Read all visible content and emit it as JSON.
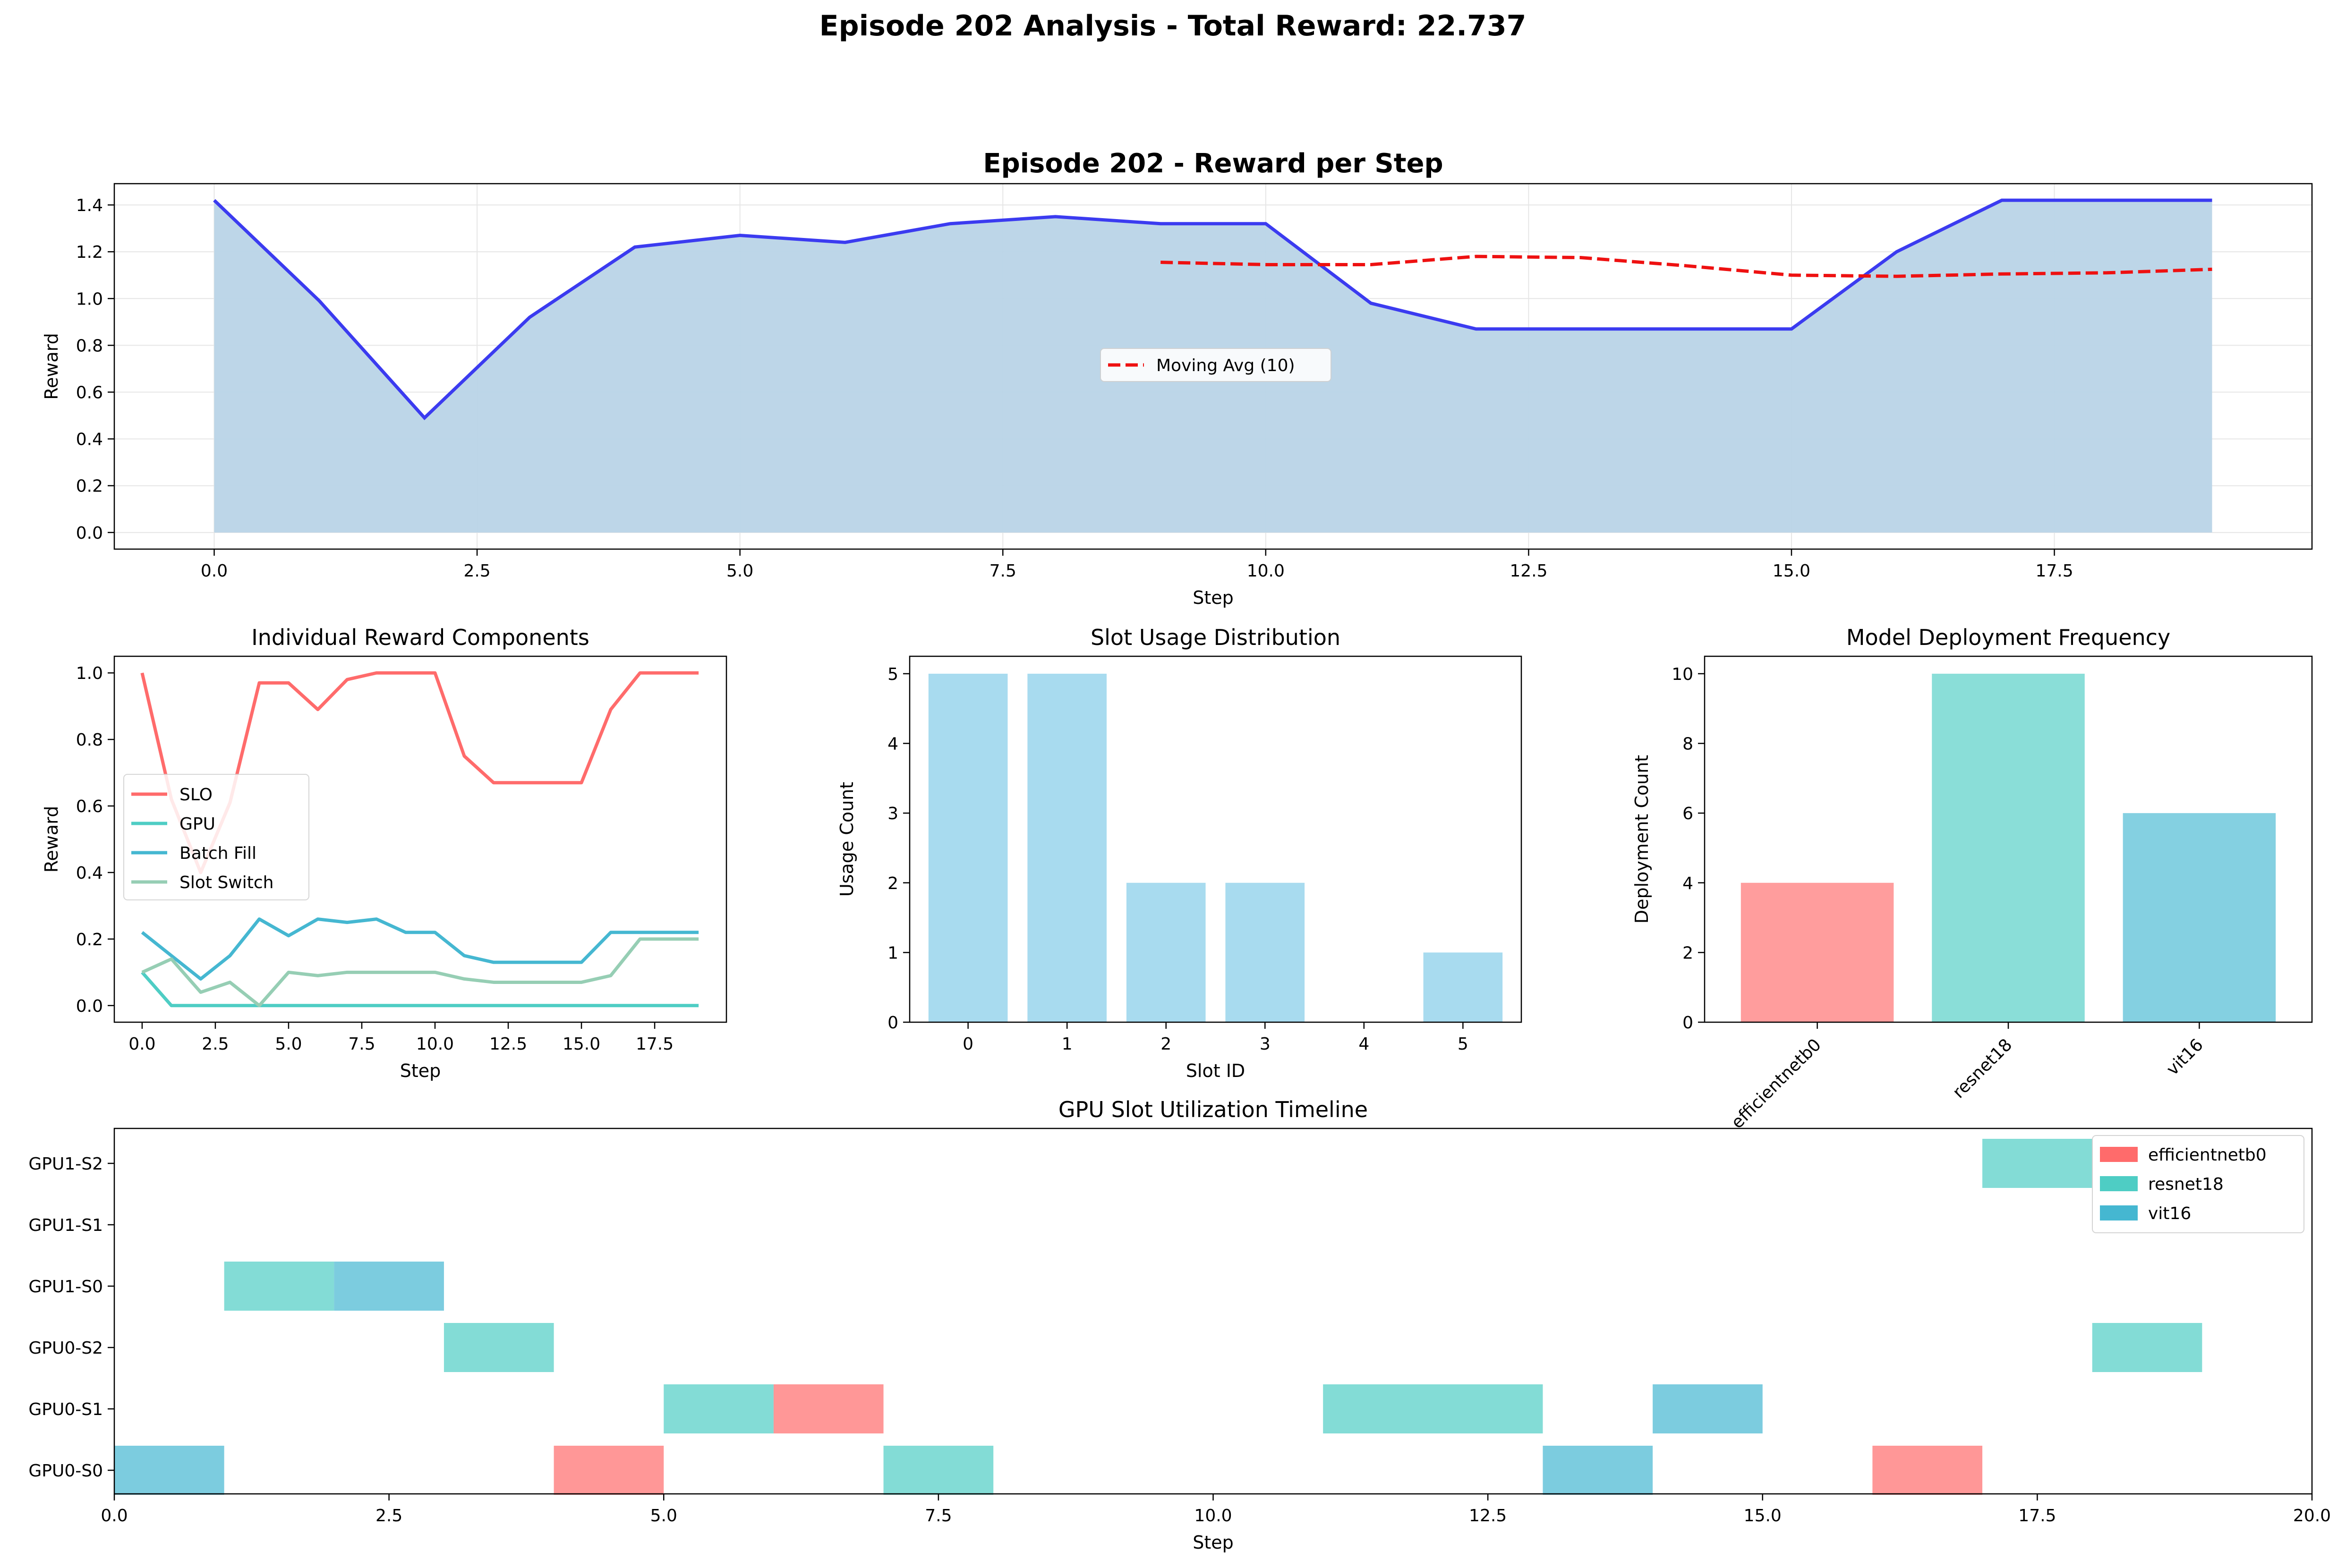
{
  "figure": {
    "suptitle": "Episode 202 Analysis - Total Reward: 22.737"
  },
  "colors": {
    "reward_line": "#3b3bf0",
    "reward_fill": "#b9d4e7",
    "moving_avg": "#ee1111",
    "slo": "#ff6b6b",
    "gpu": "#4ecdc4",
    "batch_fill": "#45b7d1",
    "slot_switch": "#96ceb4",
    "slot_bar": "#a8dbef",
    "efficientnetb0": "#ff6b6b",
    "resnet18": "#4ecdc4",
    "vit16": "#45b7d1",
    "grid": "#e6e6e6"
  },
  "chart_data": [
    {
      "id": "reward",
      "type": "area",
      "title": "Episode 202 - Reward per Step",
      "xlabel": "Step",
      "ylabel": "Reward",
      "xlim": [
        -0.95,
        19.95
      ],
      "ylim": [
        -0.071,
        1.491
      ],
      "xticks": [
        0.0,
        2.5,
        5.0,
        7.5,
        10.0,
        12.5,
        15.0,
        17.5
      ],
      "xtick_labels": [
        "0.0",
        "2.5",
        "5.0",
        "7.5",
        "10.0",
        "12.5",
        "15.0",
        "17.5"
      ],
      "yticks": [
        0.0,
        0.2,
        0.4,
        0.6,
        0.8,
        1.0,
        1.2,
        1.4
      ],
      "ytick_labels": [
        "0.0",
        "0.2",
        "0.4",
        "0.6",
        "0.8",
        "1.0",
        "1.2",
        "1.4"
      ],
      "grid": true,
      "legend_position": "center",
      "x": [
        0,
        1,
        2,
        3,
        4,
        5,
        6,
        7,
        8,
        9,
        10,
        11,
        12,
        13,
        14,
        15,
        16,
        17,
        18,
        19
      ],
      "series": [
        {
          "name": "",
          "values": [
            1.42,
            0.99,
            0.49,
            0.92,
            1.22,
            1.27,
            1.24,
            1.32,
            1.35,
            1.32,
            1.32,
            0.98,
            0.87,
            0.87,
            0.87,
            0.87,
            1.2,
            1.42,
            1.42,
            1.42
          ]
        },
        {
          "name": "Moving Avg (10)",
          "style": "dashed",
          "x": [
            9,
            10,
            11,
            12,
            13,
            14,
            15,
            16,
            17,
            18,
            19
          ],
          "values": [
            1.155,
            1.145,
            1.145,
            1.18,
            1.175,
            1.14,
            1.1,
            1.095,
            1.105,
            1.11,
            1.125
          ]
        }
      ]
    },
    {
      "id": "components",
      "type": "line",
      "title": "Individual Reward Components",
      "xlabel": "Step",
      "ylabel": "Reward",
      "xlim": [
        -0.95,
        19.95
      ],
      "ylim": [
        -0.05,
        1.05
      ],
      "xticks": [
        0.0,
        2.5,
        5.0,
        7.5,
        10.0,
        12.5,
        15.0,
        17.5
      ],
      "xtick_labels": [
        "0.0",
        "2.5",
        "5.0",
        "7.5",
        "10.0",
        "12.5",
        "15.0",
        "17.5"
      ],
      "yticks": [
        0.0,
        0.2,
        0.4,
        0.6,
        0.8,
        1.0
      ],
      "ytick_labels": [
        "0.0",
        "0.2",
        "0.4",
        "0.6",
        "0.8",
        "1.0"
      ],
      "grid": false,
      "legend_position": "center-left",
      "x": [
        0,
        1,
        2,
        3,
        4,
        5,
        6,
        7,
        8,
        9,
        10,
        11,
        12,
        13,
        14,
        15,
        16,
        17,
        18,
        19
      ],
      "series": [
        {
          "name": "SLO",
          "color_key": "slo",
          "values": [
            1.0,
            0.62,
            0.4,
            0.61,
            0.97,
            0.97,
            0.89,
            0.98,
            1.0,
            1.0,
            1.0,
            0.75,
            0.67,
            0.67,
            0.67,
            0.67,
            0.89,
            1.0,
            1.0,
            1.0
          ]
        },
        {
          "name": "GPU",
          "color_key": "gpu",
          "values": [
            0.1,
            0.0,
            0.0,
            0.0,
            0.0,
            0.0,
            0.0,
            0.0,
            0.0,
            0.0,
            0.0,
            0.0,
            0.0,
            0.0,
            0.0,
            0.0,
            0.0,
            0.0,
            0.0,
            0.0
          ]
        },
        {
          "name": "Batch Fill",
          "color_key": "batch_fill",
          "values": [
            0.22,
            0.15,
            0.08,
            0.15,
            0.26,
            0.21,
            0.26,
            0.25,
            0.26,
            0.22,
            0.22,
            0.15,
            0.13,
            0.13,
            0.13,
            0.13,
            0.22,
            0.22,
            0.22,
            0.22
          ]
        },
        {
          "name": "Slot Switch",
          "color_key": "slot_switch",
          "values": [
            0.1,
            0.14,
            0.04,
            0.07,
            0.0,
            0.1,
            0.09,
            0.1,
            0.1,
            0.1,
            0.1,
            0.08,
            0.07,
            0.07,
            0.07,
            0.07,
            0.09,
            0.2,
            0.2,
            0.2
          ]
        }
      ]
    },
    {
      "id": "slots",
      "type": "bar",
      "title": "Slot Usage Distribution",
      "xlabel": "Slot ID",
      "ylabel": "Usage Count",
      "xlim": [
        -0.59,
        5.59
      ],
      "ylim": [
        0,
        5.25
      ],
      "categories": [
        "0",
        "1",
        "2",
        "3",
        "4",
        "5"
      ],
      "values": [
        5,
        5,
        2,
        2,
        0,
        1
      ],
      "yticks": [
        0,
        1,
        2,
        3,
        4,
        5
      ],
      "ytick_labels": [
        "0",
        "1",
        "2",
        "3",
        "4",
        "5"
      ],
      "grid": false
    },
    {
      "id": "models",
      "type": "bar",
      "title": "Model Deployment Frequency",
      "xlabel": "",
      "ylabel": "Deployment Count",
      "xlim": [
        -0.59,
        2.59
      ],
      "ylim": [
        0,
        10.5
      ],
      "categories": [
        "efficientnetb0",
        "resnet18",
        "vit16"
      ],
      "values": [
        4,
        10,
        6
      ],
      "yticks": [
        0,
        2,
        4,
        6,
        8,
        10
      ],
      "ytick_labels": [
        "0",
        "2",
        "4",
        "6",
        "8",
        "10"
      ],
      "grid": false
    },
    {
      "id": "timeline",
      "type": "bar",
      "subtype": "gantt",
      "title": "GPU Slot Utilization Timeline",
      "xlabel": "Step",
      "ylabel": "",
      "xlim": [
        0,
        20
      ],
      "xticks": [
        0.0,
        2.5,
        5.0,
        7.5,
        10.0,
        12.5,
        15.0,
        17.5,
        20.0
      ],
      "xtick_labels": [
        "0.0",
        "2.5",
        "5.0",
        "7.5",
        "10.0",
        "12.5",
        "15.0",
        "17.5",
        "20.0"
      ],
      "rows": [
        "GPU0-S0",
        "GPU0-S1",
        "GPU0-S2",
        "GPU1-S0",
        "GPU1-S1",
        "GPU1-S2"
      ],
      "legend_position": "upper right",
      "legend": [
        "efficientnetb0",
        "resnet18",
        "vit16"
      ],
      "segments": [
        {
          "row": 0,
          "start": 0,
          "end": 1,
          "model": "vit16"
        },
        {
          "row": 0,
          "start": 4,
          "end": 5,
          "model": "efficientnetb0"
        },
        {
          "row": 0,
          "start": 7,
          "end": 8,
          "model": "resnet18"
        },
        {
          "row": 0,
          "start": 13,
          "end": 14,
          "model": "vit16"
        },
        {
          "row": 0,
          "start": 16,
          "end": 17,
          "model": "efficientnetb0"
        },
        {
          "row": 1,
          "start": 5,
          "end": 6,
          "model": "resnet18"
        },
        {
          "row": 1,
          "start": 6,
          "end": 7,
          "model": "efficientnetb0"
        },
        {
          "row": 1,
          "start": 11,
          "end": 13,
          "model": "resnet18"
        },
        {
          "row": 1,
          "start": 14,
          "end": 15,
          "model": "vit16"
        },
        {
          "row": 2,
          "start": 3,
          "end": 4,
          "model": "resnet18"
        },
        {
          "row": 2,
          "start": 18,
          "end": 19,
          "model": "resnet18"
        },
        {
          "row": 3,
          "start": 1,
          "end": 2,
          "model": "resnet18"
        },
        {
          "row": 3,
          "start": 2,
          "end": 3,
          "model": "vit16"
        },
        {
          "row": 5,
          "start": 17,
          "end": 18,
          "model": "resnet18"
        }
      ]
    }
  ]
}
